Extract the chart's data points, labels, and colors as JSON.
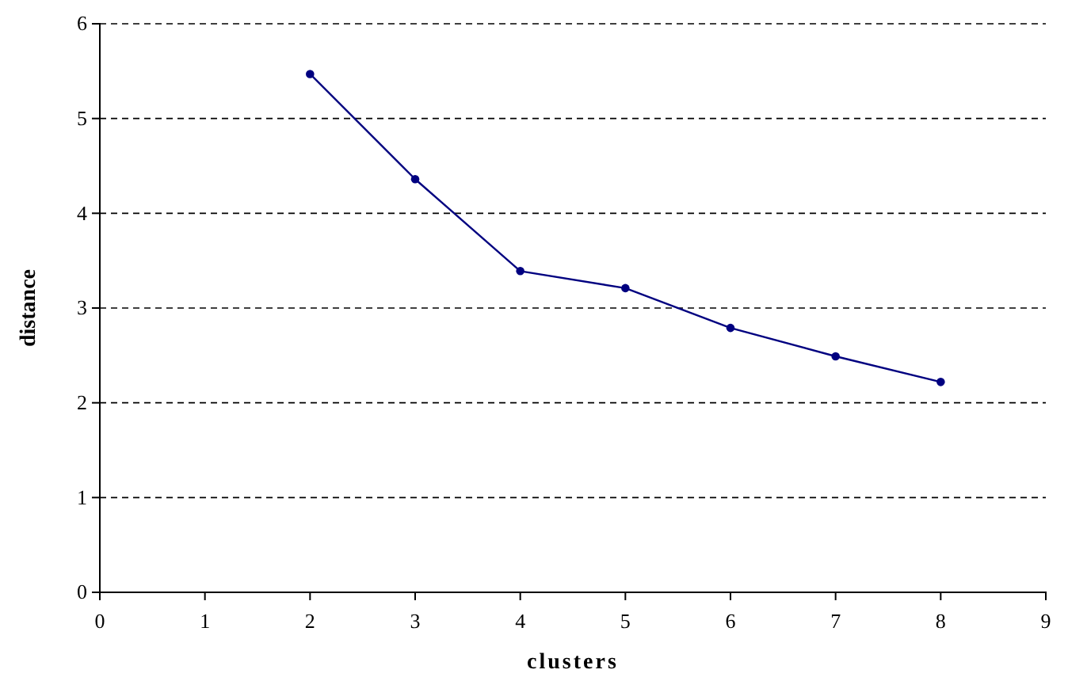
{
  "chart_data": {
    "type": "line",
    "xlabel": "clusters",
    "ylabel": "distance",
    "x": [
      2,
      3,
      4,
      5,
      6,
      7,
      8
    ],
    "series": [
      {
        "color": "#000080",
        "values": [
          5.47,
          4.36,
          3.39,
          3.21,
          2.79,
          2.49,
          2.22
        ]
      }
    ],
    "xlim": [
      0,
      9
    ],
    "xticks": [
      0,
      1,
      2,
      3,
      4,
      5,
      6,
      7,
      8,
      9
    ],
    "ylim": [
      0,
      6
    ],
    "yticks": [
      0,
      1,
      2,
      3,
      4,
      5,
      6
    ],
    "grid": "y",
    "marker": "circle",
    "line_style": "solid",
    "legend": false
  }
}
